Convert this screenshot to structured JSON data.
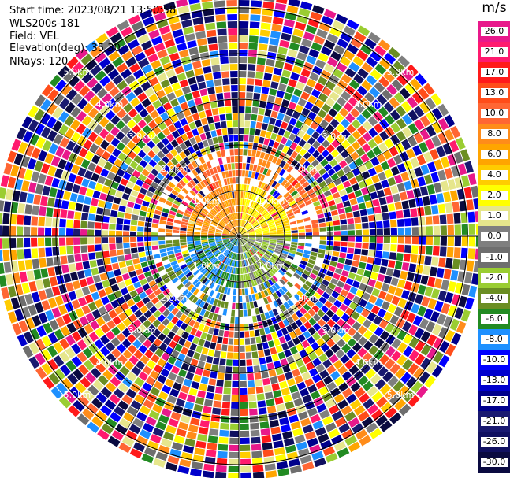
{
  "header": {
    "start_time": "Start time: 2023/08/21 13:50:58",
    "instrument": "WLS200s-181",
    "field": "Field: VEL",
    "elevation": "Elevation(deg): 35.30",
    "nrays": "NRays: 120"
  },
  "chart_data": {
    "type": "heatmap",
    "subtype": "polar-ppi",
    "field": "VEL",
    "unit": "m/s",
    "rays": 120,
    "range_rings_km": [
      1.0,
      2.0,
      3.0,
      4.0,
      5.0
    ],
    "ring_labels": [
      "1.0km",
      "2.0km",
      "3.0km",
      "4.0km",
      "5.0km"
    ],
    "colorbar": {
      "ticks": [
        "26.0",
        "21.0",
        "17.0",
        "13.0",
        "10.0",
        "8.0",
        "6.0",
        "4.0",
        "2.0",
        "1.0",
        "0.0",
        "-1.0",
        "-2.0",
        "-4.0",
        "-6.0",
        "-8.0",
        "-10.0",
        "-13.0",
        "-17.0",
        "-21.0",
        "-26.0",
        "-30.0"
      ],
      "colors": [
        "#e8198b",
        "#ff1a6e",
        "#ff1a1a",
        "#ff4d1a",
        "#ff6633",
        "#ff8c1a",
        "#ffa500",
        "#ffcc00",
        "#ffff00",
        "#e6e68c",
        "#7f7f7f",
        "#6e6e6e",
        "#9acd32",
        "#6b8e23",
        "#228b22",
        "#1e90ff",
        "#0000ff",
        "#0000cd",
        "#00008b",
        "#191970",
        "#101060",
        "#0a0a40"
      ]
    },
    "grid": true
  }
}
